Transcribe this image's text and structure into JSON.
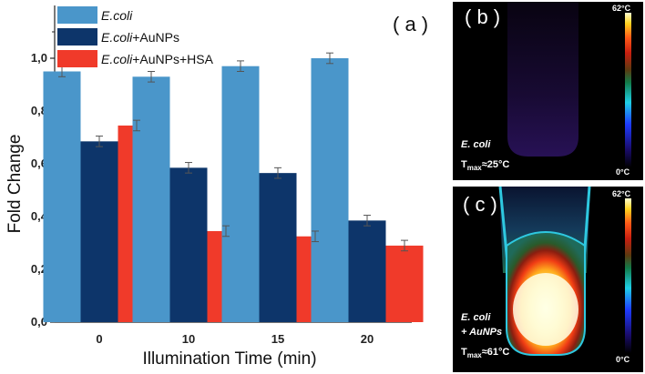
{
  "chart_data": {
    "type": "bar",
    "panel_label": "( a )",
    "xlabel": "Illumination Time (min)",
    "ylabel": "Fold Change",
    "categories": [
      "0",
      "10",
      "15",
      "20"
    ],
    "ylim": [
      0.0,
      1.2
    ],
    "yticks": [
      "0,0",
      "0,2",
      "0,4",
      "0,6",
      "0,8",
      "1,0"
    ],
    "ytick_values": [
      0.0,
      0.2,
      0.4,
      0.6,
      0.8,
      1.0
    ],
    "legend_position": "top-left",
    "series": [
      {
        "name_parts": [
          {
            "t": "E.coli",
            "italic": true
          }
        ],
        "color": "#4a96ca",
        "values": [
          0.95,
          0.93,
          0.97,
          1.0
        ],
        "errors": [
          0.02,
          0.02,
          0.02,
          0.02
        ]
      },
      {
        "name_parts": [
          {
            "t": "E.coli",
            "italic": true
          },
          {
            "t": "+AuNPs",
            "italic": false
          }
        ],
        "color": "#0d356a",
        "values": [
          0.685,
          0.585,
          0.565,
          0.385
        ],
        "errors": [
          0.02,
          0.02,
          0.02,
          0.02
        ]
      },
      {
        "name_parts": [
          {
            "t": "E.coli",
            "italic": true
          },
          {
            "t": "+AuNPs+HSA",
            "italic": false
          }
        ],
        "color": "#f03a2a",
        "values": [
          0.745,
          0.345,
          0.325,
          0.29
        ],
        "errors": [
          0.02,
          0.02,
          0.02,
          0.02
        ]
      }
    ]
  },
  "thermal_panels": [
    {
      "id": "b",
      "label": "( b )",
      "scale_max": "62°C",
      "scale_min": "0°C",
      "sample_lines": [
        "E. coli"
      ],
      "tmax_prefix": "T",
      "tmax_sub": "max",
      "tmax_value": "≈25°C"
    },
    {
      "id": "c",
      "label": "( c )",
      "scale_max": "62°C",
      "scale_min": "0°C",
      "sample_lines": [
        "E. coli",
        "+ AuNPs"
      ],
      "tmax_prefix": "T",
      "tmax_sub": "max",
      "tmax_value": "≈61°C"
    }
  ],
  "colors": {
    "colorbar": [
      "#000000",
      "#1a0c6e",
      "#1e3cff",
      "#1ecfe6",
      "#127a48",
      "#5a3a10",
      "#c81e10",
      "#ff5a18",
      "#ffd21e",
      "#ffffd2"
    ]
  }
}
